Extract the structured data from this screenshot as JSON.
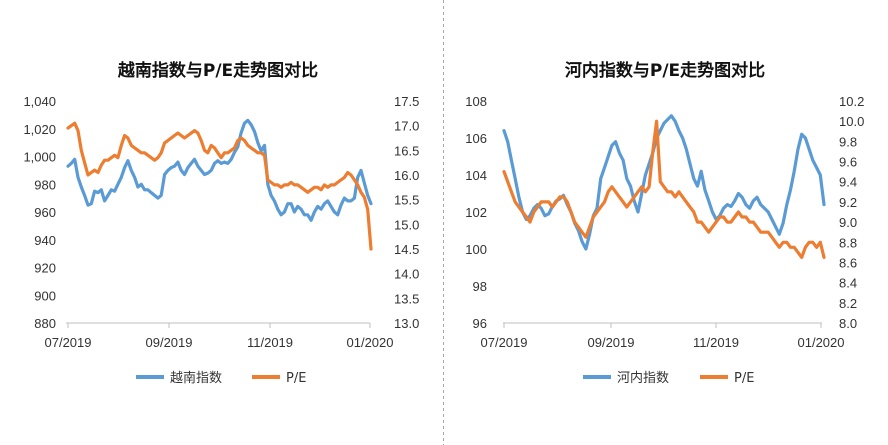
{
  "colors": {
    "index": "#5B9BD5",
    "pe": "#ED7D31",
    "axis": "#BFBFBF",
    "divider": "#A6A6A6"
  },
  "chart_data": [
    {
      "type": "line",
      "title": "越南指数与P/E走势图对比",
      "x_ticks": [
        "07/2019",
        "09/2019",
        "11/2019",
        "01/2020"
      ],
      "y_left": {
        "min": 880,
        "max": 1040,
        "step": 20,
        "tick_labels": [
          "880",
          "900",
          "920",
          "940",
          "960",
          "980",
          "1,000",
          "1,020",
          "1,040"
        ]
      },
      "y_right": {
        "min": 13.0,
        "max": 17.5,
        "step": 0.5,
        "tick_labels": [
          "13.0",
          "13.5",
          "14.0",
          "14.5",
          "15.0",
          "15.5",
          "16.0",
          "16.5",
          "17.0",
          "17.5"
        ]
      },
      "legend": [
        "越南指数",
        "P/E"
      ],
      "series": [
        {
          "name": "越南指数",
          "axis": "left",
          "values": [
            993,
            995,
            998,
            985,
            978,
            972,
            965,
            966,
            975,
            974,
            976,
            968,
            972,
            976,
            975,
            980,
            985,
            992,
            997,
            990,
            985,
            978,
            980,
            976,
            976,
            974,
            972,
            970,
            972,
            987,
            990,
            992,
            993,
            996,
            990,
            987,
            992,
            995,
            998,
            993,
            990,
            987,
            988,
            990,
            995,
            997,
            995,
            996,
            995,
            998,
            1003,
            1007,
            1017,
            1024,
            1026,
            1023,
            1018,
            1010,
            1004,
            1008,
            980,
            972,
            968,
            962,
            958,
            960,
            966,
            966,
            960,
            964,
            962,
            958,
            958,
            954,
            960,
            964,
            962,
            966,
            968,
            964,
            960,
            958,
            965,
            970,
            968,
            968,
            970,
            985,
            990,
            981,
            972,
            966
          ]
        },
        {
          "name": "P/E",
          "axis": "right",
          "values": [
            16.95,
            17.0,
            17.05,
            16.9,
            16.5,
            16.25,
            16.0,
            16.05,
            16.1,
            16.05,
            16.2,
            16.3,
            16.3,
            16.35,
            16.4,
            16.35,
            16.6,
            16.8,
            16.75,
            16.6,
            16.55,
            16.5,
            16.45,
            16.45,
            16.4,
            16.35,
            16.3,
            16.35,
            16.45,
            16.65,
            16.7,
            16.75,
            16.8,
            16.85,
            16.8,
            16.75,
            16.8,
            16.85,
            16.9,
            16.85,
            16.7,
            16.5,
            16.45,
            16.6,
            16.55,
            16.45,
            16.35,
            16.45,
            16.45,
            16.5,
            16.55,
            16.7,
            16.75,
            16.7,
            16.6,
            16.55,
            16.5,
            16.45,
            16.45,
            16.4,
            15.9,
            15.85,
            15.8,
            15.8,
            15.75,
            15.8,
            15.8,
            15.85,
            15.8,
            15.8,
            15.75,
            15.7,
            15.65,
            15.7,
            15.75,
            15.75,
            15.7,
            15.8,
            15.75,
            15.8,
            15.8,
            15.85,
            15.9,
            15.95,
            16.05,
            16.0,
            15.9,
            15.8,
            15.65,
            15.55,
            15.3,
            14.5
          ]
        }
      ]
    },
    {
      "type": "line",
      "title": "河内指数与P/E走势图对比",
      "x_ticks": [
        "07/2019",
        "09/2019",
        "11/2019",
        "01/2020"
      ],
      "y_left": {
        "min": 96,
        "max": 108,
        "step": 2,
        "tick_labels": [
          "96",
          "98",
          "100",
          "102",
          "104",
          "106",
          "108"
        ]
      },
      "y_right": {
        "min": 8.0,
        "max": 10.2,
        "step": 0.2,
        "tick_labels": [
          "8.0",
          "8.2",
          "8.4",
          "8.6",
          "8.8",
          "9.0",
          "9.2",
          "9.4",
          "9.6",
          "9.8",
          "10.0",
          "10.2"
        ]
      },
      "legend": [
        "河内指数",
        "P/E"
      ],
      "series": [
        {
          "name": "河内指数",
          "axis": "left",
          "values": [
            106.4,
            105.8,
            104.8,
            103.8,
            102.8,
            102.0,
            101.6,
            101.8,
            102.2,
            102.4,
            102.2,
            101.8,
            101.9,
            102.3,
            102.6,
            102.7,
            102.9,
            102.4,
            102.0,
            101.4,
            101.0,
            100.4,
            100.0,
            100.8,
            101.8,
            102.2,
            103.8,
            104.4,
            105.0,
            105.6,
            105.8,
            105.2,
            104.8,
            103.8,
            103.4,
            102.6,
            102.0,
            103.0,
            104.0,
            104.6,
            105.2,
            106.0,
            106.4,
            106.8,
            107.0,
            107.2,
            106.9,
            106.4,
            106.0,
            105.4,
            104.6,
            103.8,
            103.4,
            104.2,
            103.2,
            102.6,
            102.0,
            101.6,
            101.8,
            102.2,
            102.4,
            102.3,
            102.6,
            103.0,
            102.8,
            102.4,
            102.2,
            102.6,
            102.8,
            102.4,
            102.2,
            102.0,
            101.6,
            101.2,
            100.8,
            101.4,
            102.4,
            103.2,
            104.2,
            105.4,
            106.2,
            106.0,
            105.4,
            104.8,
            104.4,
            104.0,
            102.4
          ]
        },
        {
          "name": "P/E",
          "axis": "right",
          "values": [
            9.5,
            9.4,
            9.3,
            9.2,
            9.15,
            9.1,
            9.05,
            9.0,
            9.1,
            9.15,
            9.2,
            9.2,
            9.2,
            9.15,
            9.2,
            9.25,
            9.25,
            9.2,
            9.1,
            9.0,
            8.95,
            8.9,
            8.85,
            8.95,
            9.05,
            9.1,
            9.15,
            9.2,
            9.3,
            9.35,
            9.3,
            9.25,
            9.2,
            9.15,
            9.2,
            9.25,
            9.3,
            9.35,
            9.3,
            9.35,
            9.7,
            10.0,
            9.4,
            9.35,
            9.3,
            9.3,
            9.25,
            9.3,
            9.25,
            9.2,
            9.15,
            9.1,
            9.0,
            9.0,
            8.95,
            8.9,
            8.95,
            9.0,
            9.05,
            9.05,
            9.0,
            9.0,
            9.05,
            9.1,
            9.05,
            9.05,
            9.0,
            9.0,
            8.95,
            8.9,
            8.9,
            8.9,
            8.85,
            8.8,
            8.75,
            8.8,
            8.8,
            8.75,
            8.75,
            8.7,
            8.65,
            8.75,
            8.8,
            8.8,
            8.75,
            8.8,
            8.65
          ]
        }
      ]
    }
  ]
}
